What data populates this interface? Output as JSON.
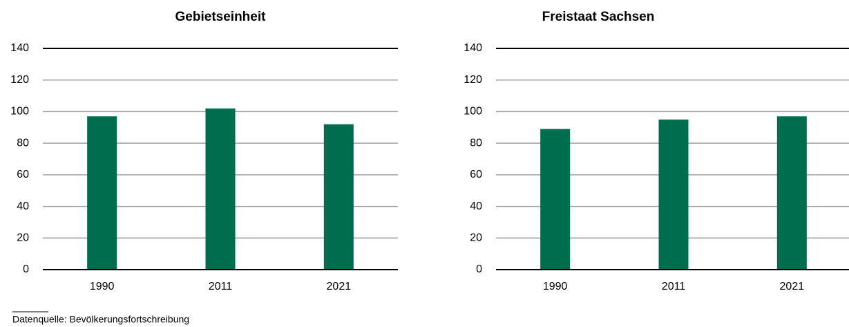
{
  "chart_data": [
    {
      "type": "bar",
      "title": "Gebietseinheit",
      "categories": [
        "1990",
        "2011",
        "2021"
      ],
      "values": [
        97,
        102,
        92
      ],
      "color": "#006e4e",
      "ylim": [
        0,
        140
      ],
      "yticks": [
        0,
        20,
        40,
        60,
        80,
        100,
        120,
        140
      ],
      "grid": true
    },
    {
      "type": "bar",
      "title": "Freistaat Sachsen",
      "categories": [
        "1990",
        "2011",
        "2021"
      ],
      "values": [
        89,
        95,
        97
      ],
      "color": "#006e4e",
      "ylim": [
        0,
        140
      ],
      "yticks": [
        0,
        20,
        40,
        60,
        80,
        100,
        120,
        140
      ],
      "grid": true
    }
  ],
  "source": "Datenquelle: Bevölkerungsfortschreibung"
}
